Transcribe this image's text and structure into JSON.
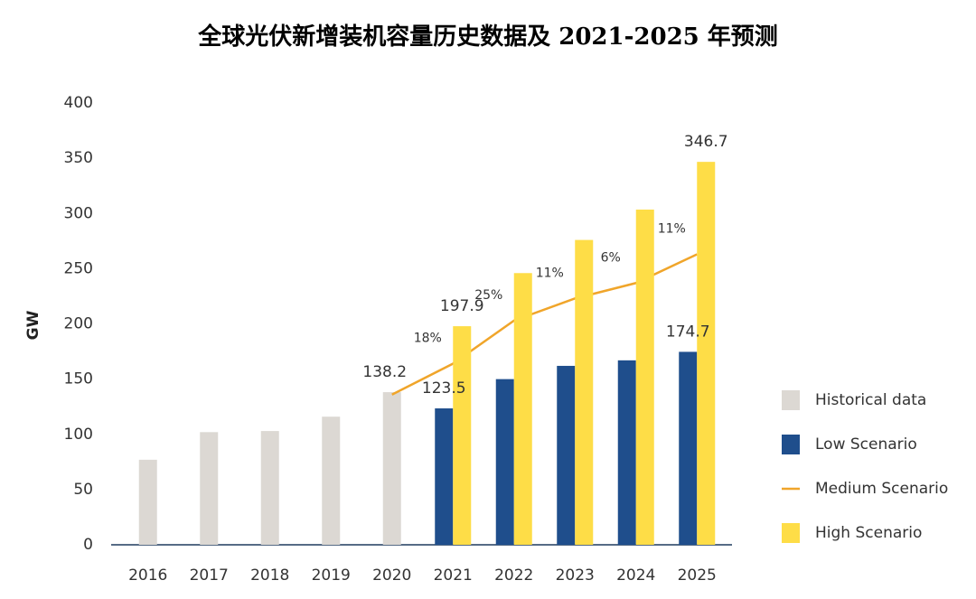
{
  "chart_data": {
    "type": "bar",
    "title": "全球光伏新增装机容量历史数据及 2021-2025 年预测",
    "y_label": "GW",
    "categories": [
      "2016",
      "2017",
      "2018",
      "2019",
      "2020",
      "2021",
      "2022",
      "2023",
      "2024",
      "2025"
    ],
    "series": [
      {
        "name": "Historical data",
        "kind": "bar",
        "color": "#dcd8d3",
        "values": [
          77,
          102,
          103,
          116,
          138.2,
          null,
          null,
          null,
          null,
          null
        ],
        "value_labels": [
          null,
          null,
          null,
          null,
          "138.2",
          null,
          null,
          null,
          null,
          null
        ]
      },
      {
        "name": "Low Scenario",
        "kind": "bar",
        "color": "#1f4e8c",
        "values": [
          null,
          null,
          null,
          null,
          null,
          123.5,
          150,
          162,
          167,
          174.7
        ],
        "value_labels": [
          null,
          null,
          null,
          null,
          null,
          "123.5",
          null,
          null,
          null,
          "174.7"
        ]
      },
      {
        "name": "Medium Scenario",
        "kind": "line",
        "color": "#f0a52a",
        "values": [
          null,
          null,
          null,
          null,
          136,
          164,
          203,
          223,
          237,
          263
        ]
      },
      {
        "name": "High Scenario",
        "kind": "bar",
        "color": "#fedd47",
        "values": [
          null,
          null,
          null,
          null,
          null,
          197.9,
          246,
          276,
          303.5,
          346.7
        ],
        "value_labels": [
          null,
          null,
          null,
          null,
          null,
          "197.9",
          null,
          null,
          null,
          "346.7"
        ]
      }
    ],
    "annotations": [
      {
        "text": "18%",
        "category": "2021"
      },
      {
        "text": "25%",
        "category": "2022"
      },
      {
        "text": "11%",
        "category": "2023"
      },
      {
        "text": "6%",
        "category": "2024"
      },
      {
        "text": "11%",
        "category": "2025"
      }
    ],
    "ylim": [
      0,
      400
    ],
    "yticks": [
      0,
      50,
      100,
      150,
      200,
      250,
      300,
      350,
      400
    ],
    "grid": false,
    "legend": "right"
  }
}
